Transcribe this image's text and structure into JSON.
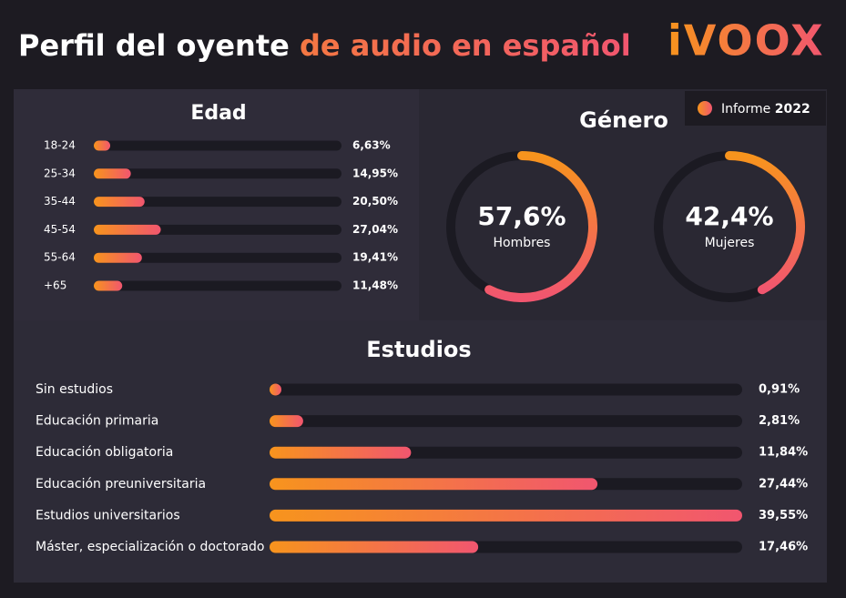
{
  "title": {
    "main": "Perfil del oyente",
    "accent": "de audio en español"
  },
  "logo": "iVOOX",
  "badge": {
    "label": "Informe",
    "year": "2022"
  },
  "chart_data": [
    {
      "type": "bar",
      "orientation": "horizontal",
      "title": "Edad",
      "categories": [
        "18-24",
        "25-34",
        "35-44",
        "45-54",
        "55-64",
        "+65"
      ],
      "values": [
        6.63,
        14.95,
        20.5,
        27.04,
        19.41,
        11.48
      ],
      "value_labels": [
        "6,63%",
        "14,95%",
        "20,50%",
        "27,04%",
        "19,41%",
        "11,48%"
      ],
      "xlim": [
        0,
        100
      ],
      "color": [
        "#f7941d",
        "#f1566f"
      ],
      "track_color": "#1b1a22"
    },
    {
      "type": "donut",
      "title": "Género",
      "categories": [
        "Hombres",
        "Mujeres"
      ],
      "values": [
        57.6,
        42.4
      ],
      "value_labels": [
        "57,6%",
        "42,4%"
      ],
      "color": [
        "#f7941d",
        "#f1566f"
      ],
      "track_color": "#1b1a22"
    },
    {
      "type": "bar",
      "orientation": "horizontal",
      "title": "Estudios",
      "categories": [
        "Sin estudios",
        "Educación primaria",
        "Educación obligatoria",
        "Educación preuniversitaria",
        "Estudios universitarios",
        "Máster, especialización o doctorado"
      ],
      "values": [
        0.91,
        2.81,
        11.84,
        27.44,
        39.55,
        17.46
      ],
      "value_labels": [
        "0,91%",
        "2,81%",
        "11,84%",
        "27,44%",
        "39,55%",
        "17,46%"
      ],
      "xlim": [
        0,
        39.55
      ],
      "color": [
        "#f7941d",
        "#f1566f"
      ],
      "track_color": "#1b1a22"
    }
  ]
}
